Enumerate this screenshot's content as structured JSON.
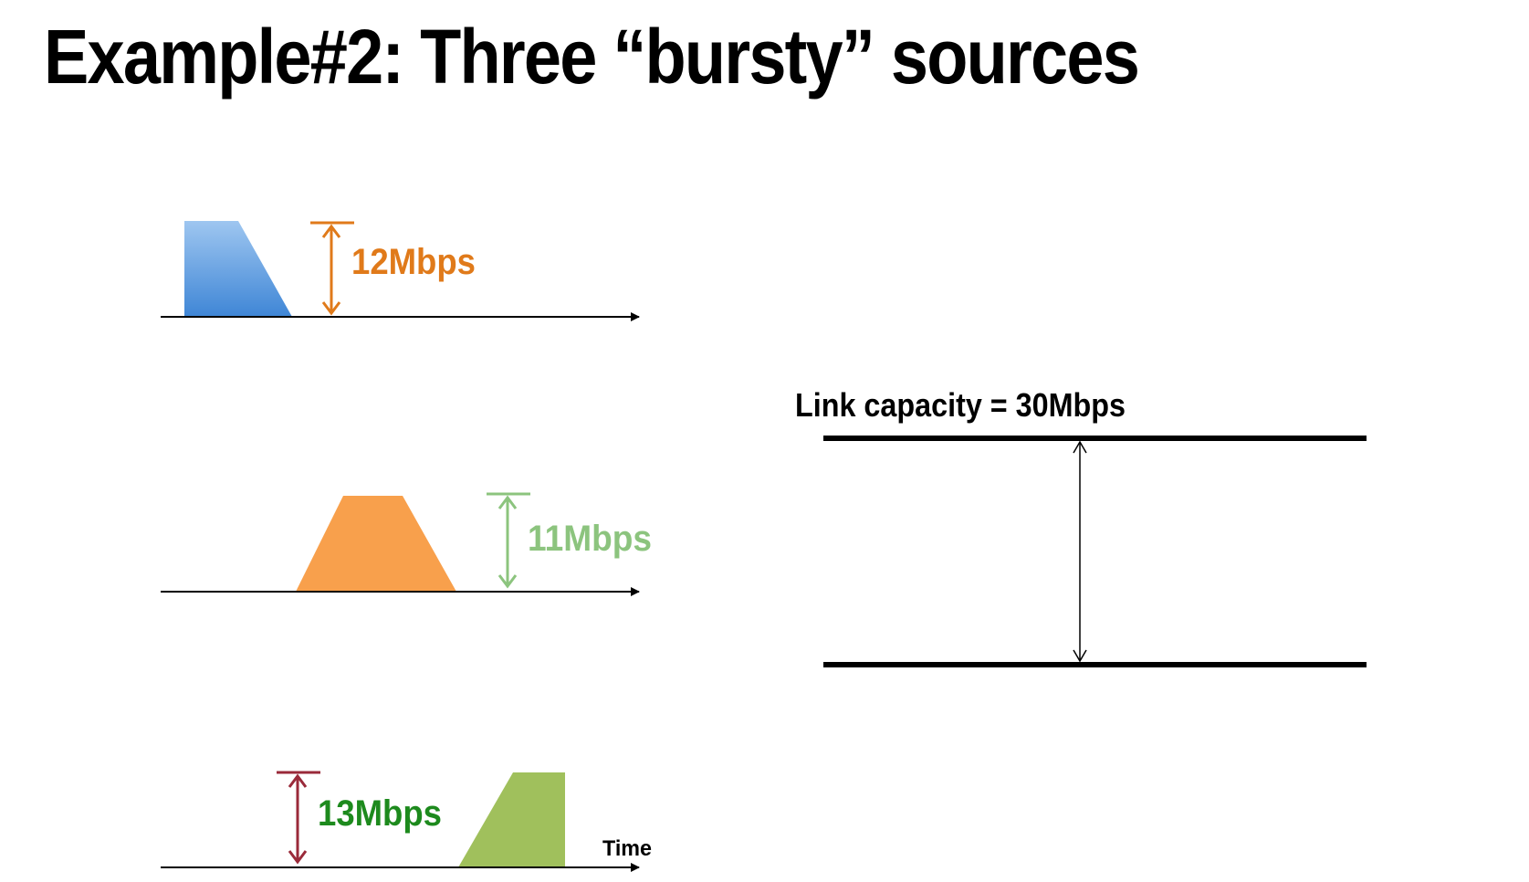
{
  "title": "Example#2: Three “bursty” sources",
  "sources": [
    {
      "rate_label": "12Mbps",
      "shape_color": "#4a8fd8",
      "arrow_color": "#e07a1a",
      "label_color": "#e07a1a"
    },
    {
      "rate_label": "11Mbps",
      "shape_color": "#f8a04c",
      "arrow_color": "#8cc47e",
      "label_color": "#8cc47e"
    },
    {
      "rate_label": "13Mbps",
      "shape_color": "#a0c05c",
      "arrow_color": "#9a2a3a",
      "label_color": "#1d8a1d"
    }
  ],
  "time_axis_label": "Time",
  "link": {
    "label": "Link capacity = 30Mbps"
  }
}
